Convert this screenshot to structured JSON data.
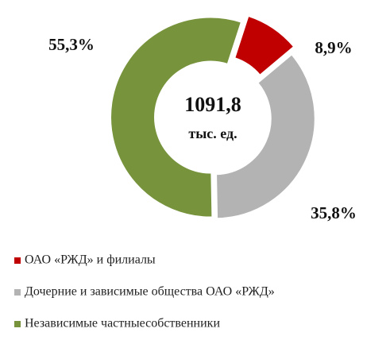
{
  "chart_data": {
    "type": "donut",
    "center_text": [
      "1091,8",
      "тыс. ед."
    ],
    "categories": [
      "ОАО «РЖД» и филиалы",
      "Дочерние и зависимые общества ОАО «РЖД»",
      "Независимые частныесобственники"
    ],
    "values": [
      8.9,
      35.8,
      55.3
    ],
    "value_labels": [
      "8,9%",
      "35,8%",
      "55,3%"
    ],
    "colors": [
      "#c00000",
      "#b3b3b3",
      "#77933c"
    ],
    "legend": "bottom-left"
  }
}
